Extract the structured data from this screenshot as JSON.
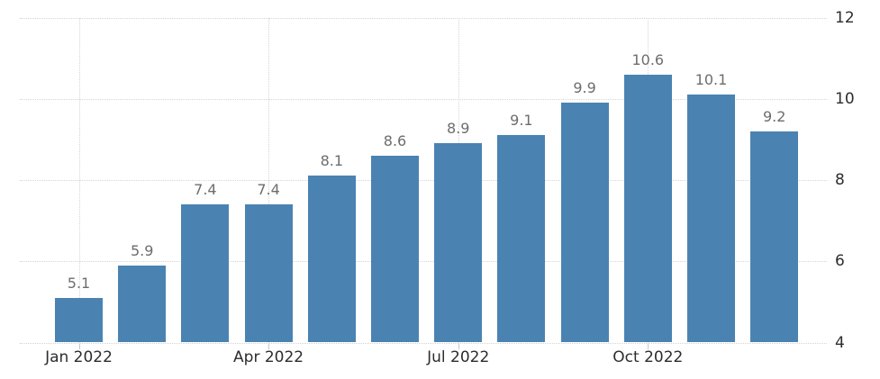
{
  "chart_data": {
    "type": "bar",
    "values": [
      5.1,
      5.9,
      7.4,
      7.4,
      8.1,
      8.6,
      8.9,
      9.1,
      9.9,
      10.6,
      10.1,
      9.2
    ],
    "bar_value_labels": [
      "5.1",
      "5.9",
      "7.4",
      "7.4",
      "8.1",
      "8.6",
      "8.9",
      "9.1",
      "9.9",
      "10.6",
      "10.1",
      "9.2"
    ],
    "x_ticks": [
      {
        "label": "Jan 2022",
        "bar_index": 0
      },
      {
        "label": "Apr 2022",
        "bar_index": 3
      },
      {
        "label": "Jul 2022",
        "bar_index": 6
      },
      {
        "label": "Oct 2022",
        "bar_index": 9
      }
    ],
    "y_ticks": [
      "4",
      "6",
      "8",
      "10",
      "12"
    ],
    "y_tick_values": [
      4,
      6,
      8,
      10,
      12
    ],
    "ylim": [
      4,
      12
    ],
    "title": "",
    "xlabel": "",
    "ylabel": "",
    "y_axis_position": "right",
    "grid": "dotted",
    "legend": "none",
    "colors": {
      "bar": "#4a83b2",
      "grid": "#d4d4d4",
      "tick": "#c9c9c9",
      "value_label": "#6d6d6d",
      "axis_label": "#2d2d2d",
      "background": "#ffffff"
    }
  }
}
